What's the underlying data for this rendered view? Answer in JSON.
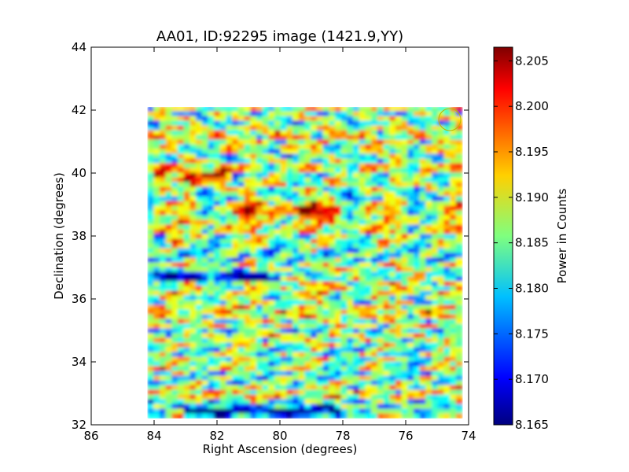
{
  "chart_data": {
    "type": "heatmap",
    "title": "AA01, ID:92295 image (1421.9,YY)",
    "xlabel": "Right Ascension (degrees)",
    "ylabel": "Declination (degrees)",
    "xlim": [
      86,
      74
    ],
    "ylim": [
      32,
      44
    ],
    "x_ticks": [
      "86",
      "84",
      "82",
      "80",
      "78",
      "76",
      "74"
    ],
    "y_ticks": [
      "32",
      "34",
      "36",
      "38",
      "40",
      "42",
      "44"
    ],
    "colorbar": {
      "label": "Power in Counts",
      "range": [
        8.165,
        8.2065
      ],
      "ticks": [
        "8.165",
        "8.170",
        "8.175",
        "8.180",
        "8.185",
        "8.190",
        "8.195",
        "8.200",
        "8.205"
      ],
      "colormap": "jet"
    },
    "data_extent": {
      "ra": [
        84.2,
        74.2
      ],
      "dec": [
        32.2,
        42.1
      ]
    },
    "grid": false,
    "colors": {
      "low": "#00007f",
      "mid_low": "#00bfff",
      "mid": "#7fff7f",
      "mid_high": "#ffbf00",
      "high": "#7f0000"
    },
    "features": [
      {
        "type": "low_band",
        "dec": 36.7,
        "ra_from": 84.2,
        "ra_to": 80.0
      },
      {
        "type": "low_band",
        "dec": 32.4,
        "ra_from": 83.0,
        "ra_to": 78.0
      },
      {
        "type": "high_band",
        "dec": 39.9,
        "ra_from": 84.0,
        "ra_to": 81.5
      },
      {
        "type": "high_band",
        "dec": 38.8,
        "ra_from": 81.5,
        "ra_to": 78.0
      },
      {
        "type": "circle_marker",
        "ra": 74.6,
        "dec": 41.7,
        "radius": 0.35
      }
    ]
  }
}
